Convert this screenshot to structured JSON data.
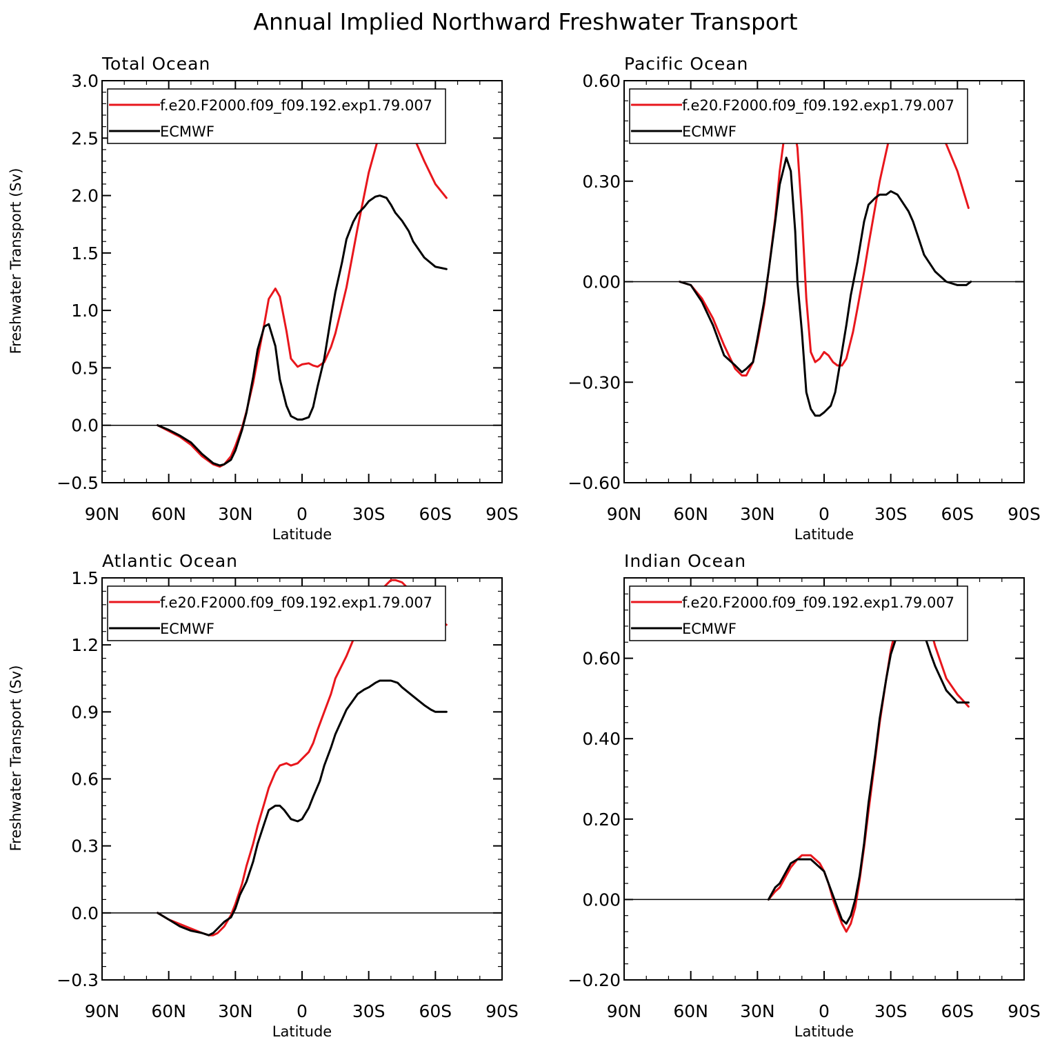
{
  "title": "Annual Implied Northward Freshwater Transport",
  "colors": {
    "model": "#e8161c",
    "obs": "#000000"
  },
  "chart_data": [
    {
      "type": "line",
      "title": "Total Ocean",
      "xlabel": "Latitude",
      "ylabel": "Freshwater Transport (Sv)",
      "xlim": [
        -90,
        90
      ],
      "ylim": [
        -0.5,
        3.0
      ],
      "xticks": [
        -90,
        -60,
        -30,
        0,
        30,
        60,
        90
      ],
      "xtick_labels": [
        "90N",
        "60N",
        "30N",
        "0",
        "30S",
        "60S",
        "90S"
      ],
      "yticks": [
        -0.5,
        0.0,
        0.5,
        1.0,
        1.5,
        2.0,
        2.5,
        3.0
      ],
      "ytick_labels": [
        "−0.5",
        "0.0",
        "0.5",
        "1.0",
        "1.5",
        "2.0",
        "2.5",
        "3.0"
      ],
      "zero_line": true,
      "legend": {
        "position": "top-left"
      },
      "series": [
        {
          "name": "f.e20.F2000.f09_f09.192.exp1.79.007",
          "color": "#e8161c",
          "x": [
            -65,
            -60,
            -55,
            -50,
            -45,
            -40,
            -37,
            -35,
            -32,
            -30,
            -27,
            -25,
            -22,
            -20,
            -17,
            -15,
            -12,
            -10,
            -7,
            -5,
            -2,
            0,
            3,
            5,
            7,
            10,
            13,
            15,
            17,
            20,
            25,
            30,
            35,
            38,
            40,
            42,
            45,
            50,
            55,
            60,
            65
          ],
          "values": [
            0.0,
            -0.05,
            -0.1,
            -0.17,
            -0.27,
            -0.34,
            -0.36,
            -0.34,
            -0.27,
            -0.18,
            -0.02,
            0.12,
            0.37,
            0.58,
            0.88,
            1.1,
            1.19,
            1.12,
            0.82,
            0.58,
            0.51,
            0.53,
            0.54,
            0.52,
            0.51,
            0.55,
            0.68,
            0.8,
            0.96,
            1.2,
            1.72,
            2.2,
            2.55,
            2.7,
            2.76,
            2.77,
            2.7,
            2.52,
            2.3,
            2.1,
            1.98
          ]
        },
        {
          "name": "ECMWF",
          "color": "#000000",
          "x": [
            -65,
            -60,
            -55,
            -50,
            -45,
            -40,
            -37,
            -35,
            -32,
            -30,
            -27,
            -25,
            -22,
            -20,
            -17,
            -15,
            -12,
            -10,
            -7,
            -5,
            -2,
            0,
            3,
            5,
            7,
            10,
            13,
            15,
            18,
            20,
            23,
            25,
            28,
            30,
            33,
            35,
            38,
            40,
            42,
            45,
            48,
            50,
            55,
            60,
            65
          ],
          "values": [
            0.0,
            -0.04,
            -0.09,
            -0.15,
            -0.25,
            -0.33,
            -0.35,
            -0.34,
            -0.3,
            -0.22,
            -0.04,
            0.11,
            0.42,
            0.66,
            0.86,
            0.88,
            0.69,
            0.4,
            0.17,
            0.08,
            0.05,
            0.05,
            0.07,
            0.16,
            0.34,
            0.58,
            0.94,
            1.16,
            1.42,
            1.62,
            1.77,
            1.84,
            1.9,
            1.95,
            1.99,
            2.0,
            1.98,
            1.92,
            1.85,
            1.78,
            1.69,
            1.6,
            1.46,
            1.38,
            1.36
          ]
        }
      ]
    },
    {
      "type": "line",
      "title": "Pacific Ocean",
      "xlabel": "Latitude",
      "ylabel": "",
      "xlim": [
        -90,
        90
      ],
      "ylim": [
        -0.6,
        0.6
      ],
      "xticks": [
        -90,
        -60,
        -30,
        0,
        30,
        60,
        90
      ],
      "xtick_labels": [
        "90N",
        "60N",
        "30N",
        "0",
        "30S",
        "60S",
        "90S"
      ],
      "yticks": [
        -0.6,
        -0.3,
        0.0,
        0.3,
        0.6
      ],
      "ytick_labels": [
        "−0.60",
        "−0.30",
        "0.00",
        "0.30",
        "0.60"
      ],
      "zero_line": true,
      "legend": {
        "position": "top-left"
      },
      "series": [
        {
          "name": "f.e20.F2000.f09_f09.192.exp1.79.007",
          "color": "#e8161c",
          "x": [
            -65,
            -60,
            -55,
            -50,
            -45,
            -40,
            -37,
            -35,
            -32,
            -30,
            -27,
            -25,
            -22,
            -20,
            -18,
            -15,
            -13,
            -12,
            -10,
            -8,
            -6,
            -4,
            -2,
            0,
            2,
            4,
            6,
            8,
            10,
            13,
            15,
            18,
            20,
            25,
            30,
            35,
            38,
            40,
            43,
            45,
            50,
            55,
            60,
            65
          ],
          "values": [
            0.0,
            -0.01,
            -0.05,
            -0.11,
            -0.19,
            -0.26,
            -0.28,
            -0.28,
            -0.24,
            -0.18,
            -0.07,
            0.03,
            0.19,
            0.33,
            0.43,
            0.47,
            0.44,
            0.4,
            0.2,
            -0.05,
            -0.21,
            -0.24,
            -0.23,
            -0.21,
            -0.22,
            -0.24,
            -0.25,
            -0.25,
            -0.23,
            -0.15,
            -0.08,
            0.03,
            0.11,
            0.3,
            0.45,
            0.53,
            0.55,
            0.55,
            0.54,
            0.53,
            0.47,
            0.41,
            0.33,
            0.22
          ]
        },
        {
          "name": "ECMWF",
          "color": "#000000",
          "x": [
            -65,
            -60,
            -55,
            -50,
            -45,
            -40,
            -37,
            -35,
            -32,
            -30,
            -27,
            -25,
            -22,
            -20,
            -17,
            -15,
            -13,
            -12,
            -10,
            -8,
            -6,
            -4,
            -2,
            0,
            3,
            5,
            7,
            10,
            12,
            15,
            18,
            20,
            23,
            25,
            28,
            30,
            33,
            35,
            38,
            40,
            43,
            45,
            50,
            55,
            60,
            64,
            66
          ],
          "values": [
            0.0,
            -0.01,
            -0.06,
            -0.13,
            -0.22,
            -0.25,
            -0.27,
            -0.26,
            -0.24,
            -0.17,
            -0.06,
            0.03,
            0.18,
            0.29,
            0.37,
            0.33,
            0.15,
            0.0,
            -0.15,
            -0.33,
            -0.38,
            -0.4,
            -0.4,
            -0.39,
            -0.37,
            -0.33,
            -0.25,
            -0.13,
            -0.04,
            0.06,
            0.18,
            0.23,
            0.25,
            0.26,
            0.26,
            0.27,
            0.26,
            0.24,
            0.21,
            0.18,
            0.12,
            0.08,
            0.03,
            0.0,
            -0.01,
            -0.01,
            0.0
          ]
        }
      ]
    },
    {
      "type": "line",
      "title": "Atlantic Ocean",
      "xlabel": "Latitude",
      "ylabel": "Freshwater Transport (Sv)",
      "xlim": [
        -90,
        90
      ],
      "ylim": [
        -0.3,
        1.5
      ],
      "xticks": [
        -90,
        -60,
        -30,
        0,
        30,
        60,
        90
      ],
      "xtick_labels": [
        "90N",
        "60N",
        "30N",
        "0",
        "30S",
        "60S",
        "90S"
      ],
      "yticks": [
        -0.3,
        0.0,
        0.3,
        0.6,
        0.9,
        1.2,
        1.5
      ],
      "ytick_labels": [
        "−0.3",
        "0.0",
        "0.3",
        "0.6",
        "0.9",
        "1.2",
        "1.5"
      ],
      "zero_line": true,
      "legend": {
        "position": "top-left"
      },
      "series": [
        {
          "name": "f.e20.F2000.f09_f09.192.exp1.79.007",
          "color": "#e8161c",
          "x": [
            -65,
            -60,
            -55,
            -50,
            -45,
            -42,
            -40,
            -38,
            -35,
            -32,
            -30,
            -27,
            -25,
            -22,
            -20,
            -17,
            -15,
            -12,
            -10,
            -7,
            -5,
            -2,
            0,
            3,
            5,
            7,
            10,
            13,
            15,
            20,
            25,
            30,
            35,
            38,
            40,
            42,
            45,
            50,
            55,
            60,
            65
          ],
          "values": [
            0.0,
            -0.03,
            -0.05,
            -0.07,
            -0.09,
            -0.1,
            -0.1,
            -0.09,
            -0.06,
            -0.01,
            0.04,
            0.13,
            0.21,
            0.31,
            0.39,
            0.49,
            0.56,
            0.63,
            0.66,
            0.67,
            0.66,
            0.67,
            0.69,
            0.72,
            0.76,
            0.82,
            0.9,
            0.98,
            1.05,
            1.15,
            1.27,
            1.38,
            1.44,
            1.47,
            1.49,
            1.49,
            1.48,
            1.43,
            1.37,
            1.32,
            1.29
          ]
        },
        {
          "name": "ECMWF",
          "color": "#000000",
          "x": [
            -65,
            -60,
            -55,
            -50,
            -45,
            -42,
            -40,
            -38,
            -35,
            -32,
            -30,
            -28,
            -25,
            -22,
            -20,
            -17,
            -15,
            -12,
            -10,
            -8,
            -5,
            -2,
            0,
            3,
            5,
            8,
            10,
            13,
            15,
            20,
            25,
            28,
            30,
            33,
            35,
            38,
            40,
            43,
            45,
            50,
            55,
            58,
            60,
            65
          ],
          "values": [
            0.0,
            -0.03,
            -0.06,
            -0.08,
            -0.09,
            -0.1,
            -0.09,
            -0.07,
            -0.04,
            -0.02,
            0.02,
            0.08,
            0.14,
            0.23,
            0.31,
            0.4,
            0.46,
            0.48,
            0.48,
            0.46,
            0.42,
            0.41,
            0.42,
            0.47,
            0.52,
            0.59,
            0.66,
            0.74,
            0.8,
            0.91,
            0.98,
            1.0,
            1.01,
            1.03,
            1.04,
            1.04,
            1.04,
            1.03,
            1.01,
            0.97,
            0.93,
            0.91,
            0.9,
            0.9
          ]
        }
      ]
    },
    {
      "type": "line",
      "title": "Indian Ocean",
      "xlabel": "Latitude",
      "ylabel": "",
      "xlim": [
        -90,
        90
      ],
      "ylim": [
        -0.2,
        0.8
      ],
      "xticks": [
        -90,
        -60,
        -30,
        0,
        30,
        60,
        90
      ],
      "xtick_labels": [
        "90N",
        "60N",
        "30N",
        "0",
        "30S",
        "60S",
        "90S"
      ],
      "yticks": [
        -0.2,
        0.0,
        0.2,
        0.4,
        0.6
      ],
      "ytick_labels": [
        "−0.20",
        "0.00",
        "0.20",
        "0.40",
        "0.60"
      ],
      "zero_line": true,
      "legend": {
        "position": "top-left"
      },
      "series": [
        {
          "name": "f.e20.F2000.f09_f09.192.exp1.79.007",
          "color": "#e8161c",
          "x": [
            -25,
            -22,
            -20,
            -17,
            -15,
            -12,
            -10,
            -8,
            -6,
            -4,
            -2,
            0,
            2,
            4,
            6,
            8,
            10,
            12,
            14,
            16,
            18,
            20,
            23,
            25,
            28,
            30,
            33,
            35,
            38,
            40,
            42,
            45,
            48,
            50,
            55,
            60,
            65
          ],
          "values": [
            0.0,
            0.02,
            0.03,
            0.06,
            0.08,
            0.1,
            0.11,
            0.11,
            0.11,
            0.1,
            0.09,
            0.07,
            0.04,
            0.0,
            -0.03,
            -0.06,
            -0.08,
            -0.06,
            -0.02,
            0.05,
            0.13,
            0.22,
            0.35,
            0.44,
            0.55,
            0.62,
            0.69,
            0.72,
            0.75,
            0.75,
            0.74,
            0.72,
            0.67,
            0.63,
            0.55,
            0.51,
            0.48
          ]
        },
        {
          "name": "ECMWF",
          "color": "#000000",
          "x": [
            -25,
            -22,
            -20,
            -17,
            -15,
            -12,
            -10,
            -8,
            -6,
            -4,
            -2,
            0,
            2,
            4,
            6,
            8,
            10,
            12,
            14,
            16,
            18,
            20,
            23,
            25,
            28,
            30,
            33,
            35,
            38,
            40,
            42,
            45,
            48,
            50,
            55,
            60,
            65
          ],
          "values": [
            0.0,
            0.03,
            0.04,
            0.07,
            0.09,
            0.1,
            0.1,
            0.1,
            0.1,
            0.09,
            0.08,
            0.07,
            0.04,
            0.01,
            -0.02,
            -0.05,
            -0.06,
            -0.04,
            0.0,
            0.06,
            0.14,
            0.24,
            0.36,
            0.45,
            0.55,
            0.61,
            0.66,
            0.68,
            0.7,
            0.7,
            0.7,
            0.66,
            0.61,
            0.58,
            0.52,
            0.49,
            0.49
          ]
        }
      ]
    }
  ]
}
